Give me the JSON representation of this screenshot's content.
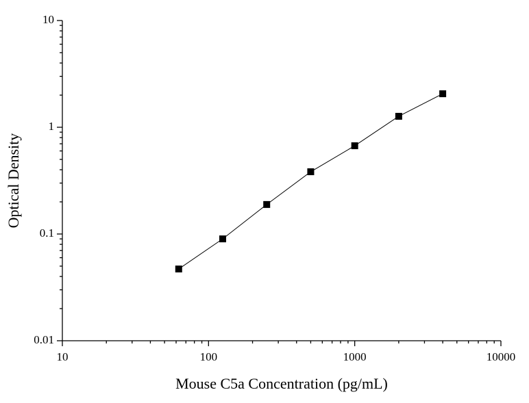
{
  "chart_data": {
    "type": "line",
    "x_label": "Mouse C5a Concentration (pg/mL)",
    "y_label": "Optical Density",
    "x": [
      62.5,
      125,
      250,
      500,
      1000,
      2000,
      4000
    ],
    "values": [
      0.047,
      0.09,
      0.189,
      0.383,
      0.671,
      1.267,
      2.06
    ],
    "color": "#000000",
    "x_log": true,
    "y_log": true,
    "xlim": [
      10,
      10000
    ],
    "xticks": [
      10,
      100,
      1000,
      10000
    ],
    "ylim": [
      0.01,
      10
    ],
    "yticks": [
      0.01,
      0.1,
      1,
      10
    ]
  }
}
